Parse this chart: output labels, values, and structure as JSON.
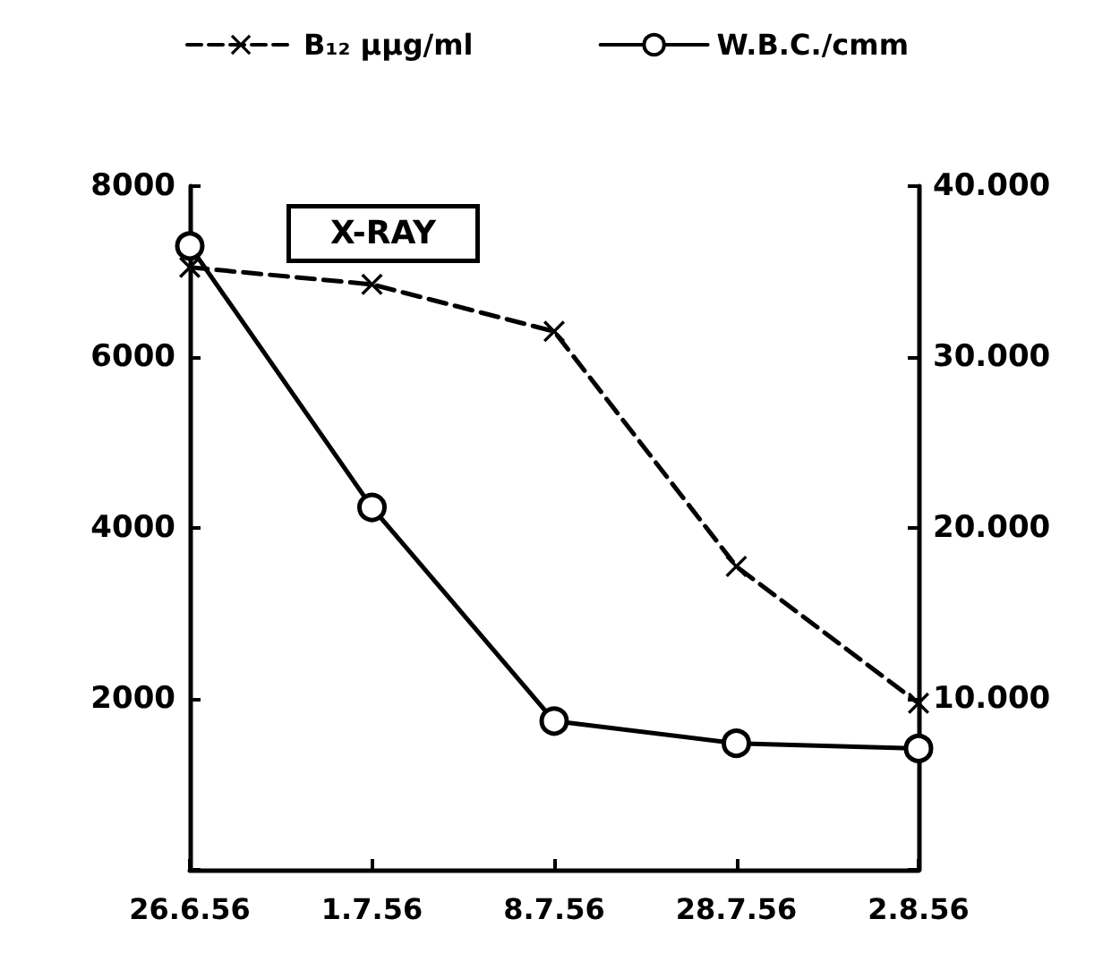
{
  "chart_data": {
    "type": "line",
    "categories": [
      "26.6.56",
      "1.7.56",
      "8.7.56",
      "28.7.56",
      "2.8.56"
    ],
    "series": [
      {
        "name": "B₁₂ μμg/ml",
        "color": "#000000",
        "values": [
          7050,
          6850,
          6300,
          3550,
          1950
        ],
        "marker": "cross",
        "line_style": "dashed"
      },
      {
        "name": "W.B.C./cmm",
        "color": "#000000",
        "values": [
          36500,
          21200,
          8700,
          7400,
          7100
        ],
        "marker": "circle",
        "line_style": "solid",
        "axis": "y2"
      }
    ],
    "ylim": [
      0,
      8000
    ],
    "yticks": [
      {
        "value": 0,
        "label": null
      },
      2000,
      4000,
      6000,
      8000
    ],
    "y2lim": [
      0,
      40000
    ],
    "y2ticks": [
      {
        "value": 0,
        "label": null
      },
      {
        "value": 10000,
        "label": "10.000"
      },
      {
        "value": 20000,
        "label": "20.000"
      },
      {
        "value": 30000,
        "label": "30.000"
      },
      {
        "value": 40000,
        "label": "40.000"
      }
    ],
    "annotations": [
      "X-RAY"
    ],
    "grid": false,
    "legend": "top"
  }
}
